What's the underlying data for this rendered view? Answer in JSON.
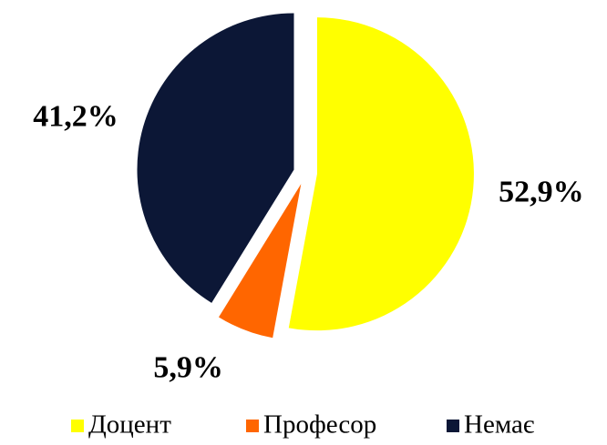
{
  "chart_data": {
    "type": "pie",
    "categories": [
      "Доцент",
      "Професор",
      "Немає"
    ],
    "values": [
      52.9,
      5.9,
      41.2
    ],
    "value_labels": [
      "52,9%",
      "5,9%",
      "41,2%"
    ],
    "colors": [
      "#ffff00",
      "#ff6600",
      "#0c1736"
    ],
    "legend": "bottom"
  }
}
